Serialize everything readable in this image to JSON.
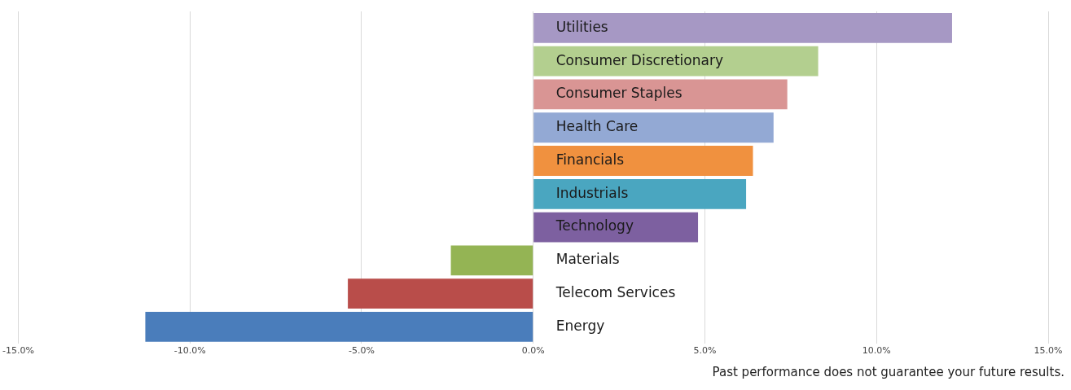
{
  "chart_data": {
    "type": "bar",
    "orientation": "horizontal",
    "categories": [
      "Utilities",
      "Consumer Discretionary",
      "Consumer Staples",
      "Health Care",
      "Financials",
      "Industrials",
      "Technology",
      "Materials",
      "Telecom Services",
      "Energy"
    ],
    "values": [
      12.2,
      8.3,
      7.4,
      7.0,
      6.4,
      6.2,
      4.8,
      -2.4,
      -5.4,
      -11.3
    ],
    "colors": [
      "#a698c4",
      "#b3cf8f",
      "#d99594",
      "#93a9d4",
      "#f0913f",
      "#4aa6c0",
      "#7d60a0",
      "#94b454",
      "#b94d4a",
      "#4a7dbb"
    ],
    "xlim": [
      -15,
      15
    ],
    "xticks": [
      {
        "value": -15,
        "label": "-15.0%"
      },
      {
        "value": -10,
        "label": "-10.0%"
      },
      {
        "value": -5,
        "label": "-5.0%"
      },
      {
        "value": 0,
        "label": "0.0%"
      },
      {
        "value": 5,
        "label": "5.0%"
      },
      {
        "value": 10,
        "label": "10.0%"
      },
      {
        "value": 15,
        "label": "15.0%"
      }
    ],
    "grid": "x",
    "legend": false,
    "annotations": [
      "Past performance does not guarantee your future results."
    ]
  }
}
